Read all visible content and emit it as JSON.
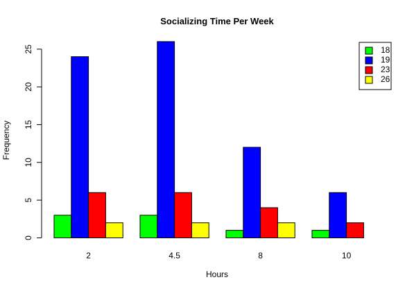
{
  "chart_data": {
    "type": "bar",
    "title": "Socializing Time Per Week",
    "xlabel": "Hours",
    "ylabel": "Frequency",
    "categories": [
      "2",
      "4.5",
      "8",
      "10"
    ],
    "ylim": [
      0,
      26
    ],
    "yticks": [
      0,
      5,
      10,
      15,
      20,
      25
    ],
    "series": [
      {
        "name": "18",
        "color": "#00ff00",
        "values": [
          3,
          3,
          1,
          1
        ]
      },
      {
        "name": "19",
        "color": "#0000ff",
        "values": [
          24,
          26,
          12,
          6
        ]
      },
      {
        "name": "23",
        "color": "#ff0000",
        "values": [
          6,
          6,
          4,
          2
        ]
      },
      {
        "name": "26",
        "color": "#ffff00",
        "values": [
          2,
          2,
          2,
          0
        ]
      }
    ],
    "legend_position": "top-right",
    "grid": false
  }
}
